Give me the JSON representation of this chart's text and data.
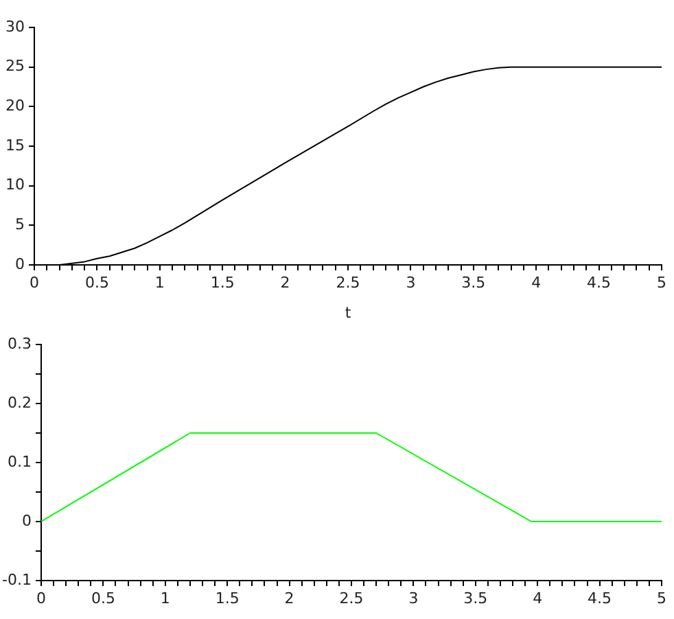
{
  "chart_data": [
    {
      "type": "line",
      "xlabel": "t",
      "x": [
        0.1,
        0.2,
        0.3,
        0.4,
        0.5,
        0.6,
        0.7,
        0.8,
        0.9,
        1.0,
        1.1,
        1.2,
        1.5,
        2.0,
        2.5,
        2.7,
        2.8,
        2.9,
        3.0,
        3.1,
        3.2,
        3.3,
        3.4,
        3.5,
        3.6,
        3.7,
        3.8,
        3.9,
        4.0,
        5.0
      ],
      "series": [
        {
          "color": "#000000",
          "values": [
            0,
            0,
            0.2,
            0.4,
            0.8,
            1.1,
            1.6,
            2.1,
            2.8,
            3.6,
            4.4,
            5.3,
            8.2,
            12.9,
            17.5,
            19.4,
            20.3,
            21.1,
            21.8,
            22.5,
            23.1,
            23.6,
            24.0,
            24.4,
            24.7,
            24.9,
            25,
            25,
            25,
            25
          ]
        }
      ],
      "xlim": [
        0,
        5
      ],
      "ylim": [
        0,
        30
      ],
      "xticks": [
        0,
        {
          "value": 0.1,
          "label": null
        },
        {
          "value": 0.2,
          "label": null
        },
        {
          "value": 0.3,
          "label": null
        },
        {
          "value": 0.4,
          "label": null
        },
        0.5,
        {
          "value": 0.6,
          "label": null
        },
        {
          "value": 0.7,
          "label": null
        },
        {
          "value": 0.8,
          "label": null
        },
        {
          "value": 0.9,
          "label": null
        },
        1,
        {
          "value": 1.1,
          "label": null
        },
        {
          "value": 1.2,
          "label": null
        },
        {
          "value": 1.3,
          "label": null
        },
        {
          "value": 1.4,
          "label": null
        },
        1.5,
        {
          "value": 1.6,
          "label": null
        },
        {
          "value": 1.7,
          "label": null
        },
        {
          "value": 1.8,
          "label": null
        },
        {
          "value": 1.9,
          "label": null
        },
        2,
        {
          "value": 2.1,
          "label": null
        },
        {
          "value": 2.2,
          "label": null
        },
        {
          "value": 2.3,
          "label": null
        },
        {
          "value": 2.4,
          "label": null
        },
        2.5,
        {
          "value": 2.6,
          "label": null
        },
        {
          "value": 2.7,
          "label": null
        },
        {
          "value": 2.8,
          "label": null
        },
        {
          "value": 2.9,
          "label": null
        },
        3,
        {
          "value": 3.1,
          "label": null
        },
        {
          "value": 3.2,
          "label": null
        },
        {
          "value": 3.3,
          "label": null
        },
        {
          "value": 3.4,
          "label": null
        },
        3.5,
        {
          "value": 3.6,
          "label": null
        },
        {
          "value": 3.7,
          "label": null
        },
        {
          "value": 3.8,
          "label": null
        },
        {
          "value": 3.9,
          "label": null
        },
        4,
        {
          "value": 4.1,
          "label": null
        },
        {
          "value": 4.2,
          "label": null
        },
        {
          "value": 4.3,
          "label": null
        },
        {
          "value": 4.4,
          "label": null
        },
        4.5,
        {
          "value": 4.6,
          "label": null
        },
        {
          "value": 4.7,
          "label": null
        },
        {
          "value": 4.8,
          "label": null
        },
        {
          "value": 4.9,
          "label": null
        },
        5
      ],
      "yticks": [
        0,
        5,
        10,
        15,
        20,
        25,
        30
      ],
      "marker": "none"
    },
    {
      "type": "line",
      "x": [
        0,
        1.2,
        2.7,
        3.95,
        5
      ],
      "series": [
        {
          "color": "#00ff00",
          "values": [
            0,
            0.15,
            0.15,
            0,
            0
          ]
        }
      ],
      "xlim": [
        0,
        5
      ],
      "ylim": [
        -0.1,
        0.3
      ],
      "xticks": [
        0,
        {
          "value": 0.1,
          "label": null
        },
        {
          "value": 0.2,
          "label": null
        },
        {
          "value": 0.3,
          "label": null
        },
        {
          "value": 0.4,
          "label": null
        },
        0.5,
        {
          "value": 0.6,
          "label": null
        },
        {
          "value": 0.7,
          "label": null
        },
        {
          "value": 0.8,
          "label": null
        },
        {
          "value": 0.9,
          "label": null
        },
        1,
        {
          "value": 1.1,
          "label": null
        },
        {
          "value": 1.2,
          "label": null
        },
        {
          "value": 1.3,
          "label": null
        },
        {
          "value": 1.4,
          "label": null
        },
        1.5,
        {
          "value": 1.6,
          "label": null
        },
        {
          "value": 1.7,
          "label": null
        },
        {
          "value": 1.8,
          "label": null
        },
        {
          "value": 1.9,
          "label": null
        },
        2,
        {
          "value": 2.1,
          "label": null
        },
        {
          "value": 2.2,
          "label": null
        },
        {
          "value": 2.3,
          "label": null
        },
        {
          "value": 2.4,
          "label": null
        },
        2.5,
        {
          "value": 2.6,
          "label": null
        },
        {
          "value": 2.7,
          "label": null
        },
        {
          "value": 2.8,
          "label": null
        },
        {
          "value": 2.9,
          "label": null
        },
        3,
        {
          "value": 3.1,
          "label": null
        },
        {
          "value": 3.2,
          "label": null
        },
        {
          "value": 3.3,
          "label": null
        },
        {
          "value": 3.4,
          "label": null
        },
        3.5,
        {
          "value": 3.6,
          "label": null
        },
        {
          "value": 3.7,
          "label": null
        },
        {
          "value": 3.8,
          "label": null
        },
        {
          "value": 3.9,
          "label": null
        },
        4,
        {
          "value": 4.1,
          "label": null
        },
        {
          "value": 4.2,
          "label": null
        },
        {
          "value": 4.3,
          "label": null
        },
        {
          "value": 4.4,
          "label": null
        },
        4.5,
        {
          "value": 4.6,
          "label": null
        },
        {
          "value": 4.7,
          "label": null
        },
        {
          "value": 4.8,
          "label": null
        },
        {
          "value": 4.9,
          "label": null
        },
        5
      ],
      "yticks": [
        -0.1,
        {
          "value": -0.05,
          "label": null
        },
        0,
        {
          "value": 0.05,
          "label": null
        },
        0.1,
        {
          "value": 0.15,
          "label": null
        },
        0.2,
        {
          "value": 0.25,
          "label": null
        },
        0.3
      ],
      "marker": "none"
    }
  ]
}
